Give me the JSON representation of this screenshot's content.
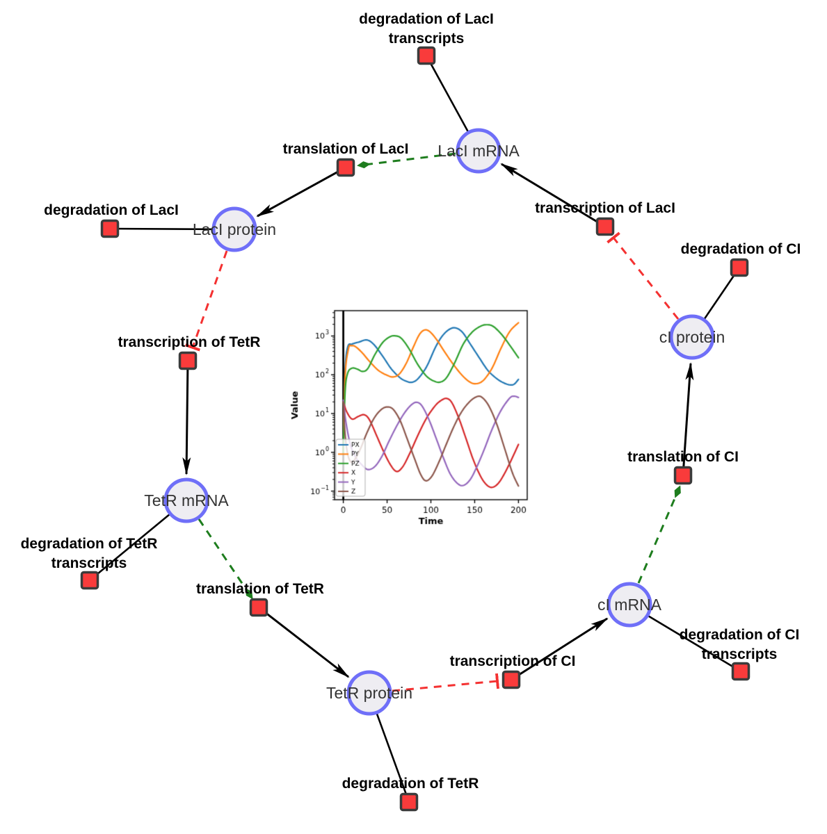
{
  "network": {
    "colors": {
      "species_fill": "#eeedf2",
      "species_stroke": "#6f6ff8",
      "reaction_fill": "#f93b3b",
      "reaction_stroke": "#3b3b3b",
      "edge_black": "#000000",
      "activation_green": "#1e7d1e",
      "inhibition_red": "#f43131"
    },
    "species": {
      "laci_mrna": {
        "label": "LacI mRNA"
      },
      "laci_protein": {
        "label": "LacI protein"
      },
      "tetr_mrna": {
        "label": "TetR mRNA"
      },
      "tetr_protein": {
        "label": "TetR protein"
      },
      "ci_mrna": {
        "label": "cI mRNA"
      },
      "ci_protein": {
        "label": "cI protein"
      }
    },
    "reactions": {
      "deg_laci_transcripts": {
        "label1": "degradation of LacI",
        "label2": "transcripts"
      },
      "translation_laci": {
        "label1": "translation of LacI"
      },
      "transcription_laci": {
        "label1": "transcription of LacI"
      },
      "deg_laci": {
        "label1": "degradation of LacI"
      },
      "deg_ci": {
        "label1": "degradation of CI"
      },
      "transcription_tetr": {
        "label1": "transcription of TetR"
      },
      "translation_ci": {
        "label1": "translation of CI"
      },
      "deg_tetr_transcripts": {
        "label1": "degradation of TetR",
        "label2": "transcripts"
      },
      "translation_tetr": {
        "label1": "translation of TetR"
      },
      "transcription_ci": {
        "label1": "transcription of CI"
      },
      "deg_ci_transcripts": {
        "label1": "degradation of CI",
        "label2": "transcripts"
      },
      "deg_tetr": {
        "label1": "degradation of TetR"
      }
    }
  },
  "chart_data": {
    "type": "line",
    "xlabel": "Time",
    "ylabel": "Value",
    "xlim": [
      -10,
      210
    ],
    "ylim": [
      0.06,
      4500
    ],
    "ylog": true,
    "xticks": [
      0,
      50,
      100,
      150,
      200
    ],
    "ytick_exponents": [
      -1,
      0,
      1,
      2,
      3
    ],
    "legend_position": "lower left",
    "vline": {
      "x": 0,
      "color": "#000000"
    },
    "series": [
      {
        "name": "PX",
        "color": "#1f77b4",
        "points": [
          [
            0,
            1.5
          ],
          [
            2,
            120
          ],
          [
            5,
            520
          ],
          [
            10,
            620
          ],
          [
            18,
            700
          ],
          [
            27,
            790
          ],
          [
            35,
            600
          ],
          [
            45,
            300
          ],
          [
            55,
            140
          ],
          [
            65,
            83
          ],
          [
            72,
            68
          ],
          [
            78,
            64
          ],
          [
            85,
            78
          ],
          [
            95,
            160
          ],
          [
            105,
            500
          ],
          [
            113,
            1000
          ],
          [
            121,
            1480
          ],
          [
            128,
            1620
          ],
          [
            136,
            1250
          ],
          [
            145,
            620
          ],
          [
            155,
            280
          ],
          [
            165,
            130
          ],
          [
            175,
            80
          ],
          [
            183,
            62
          ],
          [
            190,
            55
          ],
          [
            195,
            57
          ],
          [
            200,
            76
          ]
        ]
      },
      {
        "name": "PY",
        "color": "#ff7f0e",
        "points": [
          [
            0,
            1.0
          ],
          [
            2,
            90
          ],
          [
            6,
            480
          ],
          [
            9,
            560
          ],
          [
            14,
            530
          ],
          [
            22,
            360
          ],
          [
            30,
            220
          ],
          [
            40,
            130
          ],
          [
            50,
            97
          ],
          [
            57,
            88
          ],
          [
            64,
            105
          ],
          [
            72,
            200
          ],
          [
            80,
            520
          ],
          [
            87,
            1100
          ],
          [
            93,
            1430
          ],
          [
            99,
            1280
          ],
          [
            107,
            780
          ],
          [
            116,
            380
          ],
          [
            126,
            180
          ],
          [
            136,
            95
          ],
          [
            145,
            64
          ],
          [
            152,
            59
          ],
          [
            160,
            72
          ],
          [
            170,
            150
          ],
          [
            180,
            480
          ],
          [
            190,
            1300
          ],
          [
            200,
            2200
          ]
        ]
      },
      {
        "name": "PZ",
        "color": "#2ca02c",
        "points": [
          [
            0,
            0.9
          ],
          [
            2,
            35
          ],
          [
            5,
            110
          ],
          [
            10,
            148
          ],
          [
            16,
            140
          ],
          [
            22,
            122
          ],
          [
            28,
            145
          ],
          [
            36,
            330
          ],
          [
            45,
            680
          ],
          [
            53,
            950
          ],
          [
            59,
            1010
          ],
          [
            66,
            880
          ],
          [
            75,
            470
          ],
          [
            85,
            185
          ],
          [
            95,
            92
          ],
          [
            104,
            68
          ],
          [
            111,
            65
          ],
          [
            118,
            85
          ],
          [
            127,
            200
          ],
          [
            137,
            620
          ],
          [
            147,
            1250
          ],
          [
            156,
            1750
          ],
          [
            163,
            1950
          ],
          [
            171,
            1780
          ],
          [
            181,
            1080
          ],
          [
            191,
            540
          ],
          [
            200,
            275
          ]
        ]
      },
      {
        "name": "X",
        "color": "#d62728",
        "points": [
          [
            0,
            20
          ],
          [
            4,
            11
          ],
          [
            10,
            7.2
          ],
          [
            17,
            8.4
          ],
          [
            24,
            9.3
          ],
          [
            30,
            6.8
          ],
          [
            38,
            2.7
          ],
          [
            46,
            1.05
          ],
          [
            54,
            0.47
          ],
          [
            61,
            0.32
          ],
          [
            68,
            0.43
          ],
          [
            76,
            0.95
          ],
          [
            85,
            2.7
          ],
          [
            95,
            7.6
          ],
          [
            105,
            16
          ],
          [
            112,
            22
          ],
          [
            118,
            24.5
          ],
          [
            124,
            19
          ],
          [
            132,
            7.5
          ],
          [
            140,
            2.3
          ],
          [
            148,
            0.68
          ],
          [
            156,
            0.26
          ],
          [
            163,
            0.15
          ],
          [
            170,
            0.125
          ],
          [
            178,
            0.17
          ],
          [
            188,
            0.42
          ],
          [
            200,
            1.6
          ]
        ]
      },
      {
        "name": "Y",
        "color": "#9467bd",
        "points": [
          [
            0,
            22
          ],
          [
            3,
            6
          ],
          [
            8,
            1.6
          ],
          [
            14,
            0.75
          ],
          [
            21,
            0.48
          ],
          [
            28,
            0.36
          ],
          [
            36,
            0.43
          ],
          [
            44,
            0.78
          ],
          [
            52,
            1.9
          ],
          [
            61,
            4.8
          ],
          [
            70,
            10.5
          ],
          [
            78,
            17
          ],
          [
            84,
            19.5
          ],
          [
            90,
            15.5
          ],
          [
            98,
            6.8
          ],
          [
            106,
            2.3
          ],
          [
            114,
            0.75
          ],
          [
            122,
            0.28
          ],
          [
            130,
            0.16
          ],
          [
            137,
            0.14
          ],
          [
            145,
            0.2
          ],
          [
            153,
            0.45
          ],
          [
            161,
            1.2
          ],
          [
            170,
            4
          ],
          [
            180,
            12
          ],
          [
            190,
            25
          ],
          [
            195,
            28
          ],
          [
            200,
            26
          ]
        ]
      },
      {
        "name": "Z",
        "color": "#8c564b",
        "points": [
          [
            0,
            20
          ],
          [
            2,
            3
          ],
          [
            5,
            0.9
          ],
          [
            9,
            0.56
          ],
          [
            14,
            0.7
          ],
          [
            20,
            1.3
          ],
          [
            27,
            3.2
          ],
          [
            35,
            7.5
          ],
          [
            43,
            12.5
          ],
          [
            50,
            14.8
          ],
          [
            57,
            12.8
          ],
          [
            65,
            6.5
          ],
          [
            73,
            2.2
          ],
          [
            81,
            0.72
          ],
          [
            88,
            0.28
          ],
          [
            94,
            0.185
          ],
          [
            101,
            0.24
          ],
          [
            109,
            0.55
          ],
          [
            117,
            1.5
          ],
          [
            126,
            4.5
          ],
          [
            135,
            11
          ],
          [
            144,
            20
          ],
          [
            152,
            27
          ],
          [
            158,
            26.5
          ],
          [
            166,
            16
          ],
          [
            175,
            5.5
          ],
          [
            184,
            1.3
          ],
          [
            193,
            0.3
          ],
          [
            200,
            0.135
          ]
        ]
      }
    ]
  }
}
